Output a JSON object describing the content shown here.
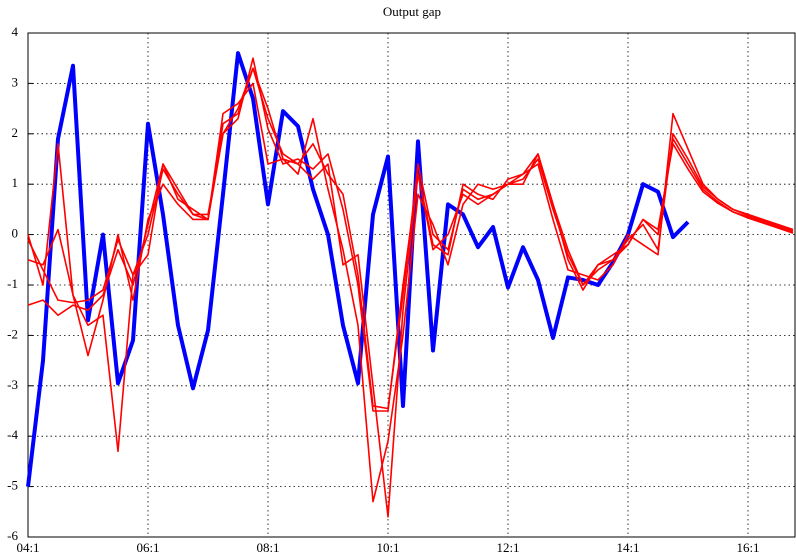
{
  "chart_data": {
    "type": "line",
    "title": "Output gap",
    "categories": [
      "04:1",
      null,
      null,
      null,
      null,
      null,
      null,
      null,
      "06:1",
      null,
      null,
      null,
      null,
      null,
      null,
      null,
      "08:1",
      null,
      null,
      null,
      null,
      null,
      null,
      null,
      "10:1",
      null,
      null,
      null,
      null,
      null,
      null,
      null,
      "12:1",
      null,
      null,
      null,
      null,
      null,
      null,
      null,
      "14:1",
      null,
      null,
      null,
      null,
      null,
      null,
      null,
      "16:1",
      null,
      null,
      null
    ],
    "ylim": [
      -6,
      4
    ],
    "yticks": [
      -6,
      -5,
      -4,
      -3,
      -2,
      -1,
      0,
      1,
      2,
      3,
      4
    ],
    "grid": true,
    "series": [
      {
        "color": "#0000ff",
        "values": [
          -5,
          -2.5,
          1.9,
          3.35,
          -1.7,
          0.0,
          -2.95,
          -2.1,
          2.2,
          0.4,
          -1.8,
          -3.05,
          -1.9,
          0.8,
          3.6,
          2.7,
          0.6,
          2.45,
          2.15,
          0.9,
          0.0,
          -1.8,
          -2.95,
          0.4,
          1.55,
          -3.4,
          1.85,
          -2.3,
          0.6,
          0.4,
          -0.25,
          0.15,
          -1.05,
          -0.25,
          -0.9,
          -2.05,
          -0.85,
          -0.9,
          -1.0,
          -0.55,
          0.0,
          1.0,
          0.85,
          -0.05,
          0.25,
          null,
          null,
          null,
          null,
          null,
          null,
          null
        ]
      },
      {
        "color": "#ff0000",
        "values": [
          -0.1,
          -0.7,
          -1.3,
          -1.35,
          -1.3,
          -1.1,
          -0.1,
          -0.8,
          0.0,
          1.3,
          0.8,
          0.4,
          0.3,
          2.2,
          2.4,
          3.3,
          2.5,
          1.5,
          1.4,
          1.8,
          1.2,
          0.8,
          -0.8,
          -3.4,
          -3.45,
          -1.2,
          1.4,
          0.0,
          -0.3,
          0.9,
          0.7,
          0.8,
          1.0,
          1.1,
          1.5,
          0.5,
          -0.4,
          -1.0,
          -0.7,
          -0.5,
          -0.2,
          0.3,
          0.0,
          1.9,
          1.4,
          0.9,
          0.65,
          0.45,
          0.35,
          0.25,
          0.15,
          0.05
        ]
      },
      {
        "color": "#ff0000",
        "values": [
          -1.4,
          -1.3,
          -1.6,
          -1.4,
          -1.5,
          -1.2,
          -0.3,
          -1.0,
          0.2,
          1.4,
          0.7,
          0.5,
          0.3,
          2.0,
          2.3,
          3.5,
          2.1,
          1.4,
          1.5,
          1.3,
          1.6,
          0.5,
          -1.0,
          -3.5,
          -3.5,
          -1.0,
          1.2,
          -0.2,
          -0.4,
          1.0,
          0.8,
          0.7,
          1.1,
          1.2,
          1.6,
          0.6,
          -0.5,
          -1.1,
          -0.6,
          -0.5,
          -0.1,
          0.2,
          -0.3,
          2.0,
          1.5,
          0.95,
          0.7,
          0.5,
          0.38,
          0.28,
          0.18,
          0.08
        ]
      },
      {
        "color": "#ff0000",
        "values": [
          0.0,
          -1.0,
          1.8,
          -1.2,
          -2.4,
          -1.3,
          0.0,
          -1.3,
          0.3,
          1.0,
          0.6,
          0.3,
          0.3,
          2.4,
          2.6,
          3.0,
          1.4,
          1.5,
          1.2,
          2.3,
          0.9,
          -0.3,
          -1.8,
          -5.3,
          -4.1,
          -2.0,
          0.8,
          0.2,
          -0.6,
          0.6,
          1.0,
          0.9,
          1.0,
          1.2,
          1.4,
          0.3,
          -0.7,
          -0.8,
          -0.9,
          -0.6,
          0.0,
          -0.2,
          -0.4,
          2.4,
          1.7,
          1.0,
          0.7,
          0.5,
          0.4,
          0.3,
          0.2,
          0.1
        ]
      },
      {
        "color": "#ff0000",
        "values": [
          -0.5,
          -0.6,
          0.1,
          -1.2,
          -1.8,
          -1.6,
          -4.3,
          -0.8,
          -0.4,
          1.4,
          0.9,
          0.4,
          0.4,
          2.0,
          2.5,
          3.3,
          2.3,
          1.6,
          1.4,
          1.1,
          1.4,
          -0.6,
          -0.4,
          -3.0,
          -5.6,
          -1.5,
          1.2,
          -0.3,
          0.0,
          0.8,
          0.6,
          0.8,
          1.0,
          1.0,
          1.6,
          0.6,
          -0.3,
          -1.0,
          -0.6,
          -0.4,
          -0.2,
          0.3,
          0.1,
          1.8,
          1.3,
          0.85,
          0.62,
          0.45,
          0.33,
          0.23,
          0.13,
          0.03
        ]
      }
    ]
  }
}
